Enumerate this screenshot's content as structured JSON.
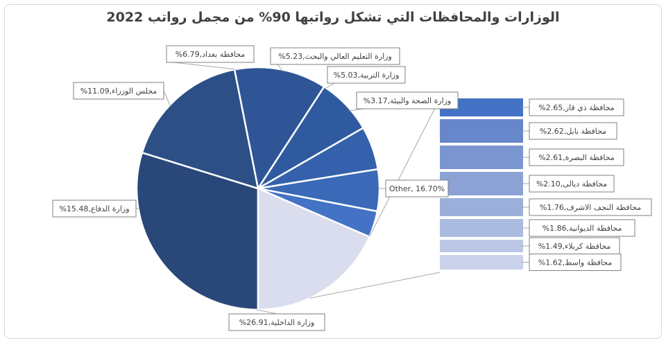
{
  "chart_data": {
    "type": "pie-of-bar",
    "title": "الوزارات والمحافظات التي تشكل رواتبها 90% من مجمل رواتب 2022",
    "pie": [
      {
        "label": "وزارة الداخلية",
        "value": 26.91,
        "display": "وزارة الداخلية,26.91%",
        "color": "#294879"
      },
      {
        "label": "وزارة الدفاع",
        "value": 15.48,
        "display": "وزارة الدفاع,15.48%",
        "color": "#2c4f86"
      },
      {
        "label": "مجلس الوزراء",
        "value": 11.09,
        "display": "مجلس الوزراء,11.09%",
        "color": "#2f5597"
      },
      {
        "label": "محافظة بغداد",
        "value": 6.79,
        "display": "محافظة بغداد,6.79%",
        "color": "#305aa0"
      },
      {
        "label": "وزارة التعليم العالي والبحث",
        "value": 5.23,
        "display": "وزارة التعليم العالي والبحث,5.23%",
        "color": "#3561ac"
      },
      {
        "label": "وزارة التربية",
        "value": 5.03,
        "display": "وزارة التربية,5.03%",
        "color": "#3a69b7"
      },
      {
        "label": "وزارة الصحة والبيئة",
        "value": 3.17,
        "display": "وزارة الصحة والبيئة,3.17%",
        "color": "#4472c4"
      },
      {
        "label": "Other",
        "value": 16.7,
        "display": "Other, 16.70%",
        "color": "#d9dded"
      }
    ],
    "bar": [
      {
        "label": "محافظة ذي قار",
        "value": 2.65,
        "display": "محافظة ذي قار,2.65%",
        "color": "#4472c4"
      },
      {
        "label": "محافظة بابل",
        "value": 2.62,
        "display": "محافظة بابل,2.62%",
        "color": "#6886ca"
      },
      {
        "label": "محافظة البصرة",
        "value": 2.61,
        "display": "محافظة البصرة,2.61%",
        "color": "#7b95d0"
      },
      {
        "label": "محافظة ديالى",
        "value": 2.1,
        "display": "محافظة ديالى,2.10%",
        "color": "#8ca2d5"
      },
      {
        "label": "محافظة النجف الاشرف",
        "value": 1.76,
        "display": "محافظة النجف الاشرف,1.76%",
        "color": "#9cafda"
      },
      {
        "label": "محافظة الديوانية",
        "value": 1.86,
        "display": "محافظة الديوانية,1.86%",
        "color": "#abbbe0"
      },
      {
        "label": "محافظة كربلاء",
        "value": 1.49,
        "display": "محافظة كربلاء,1.49%",
        "color": "#bbc7e5"
      },
      {
        "label": "محافظة واسط",
        "value": 1.62,
        "display": "محافظة واسط,1.62%",
        "color": "#c9d2ea"
      }
    ]
  }
}
